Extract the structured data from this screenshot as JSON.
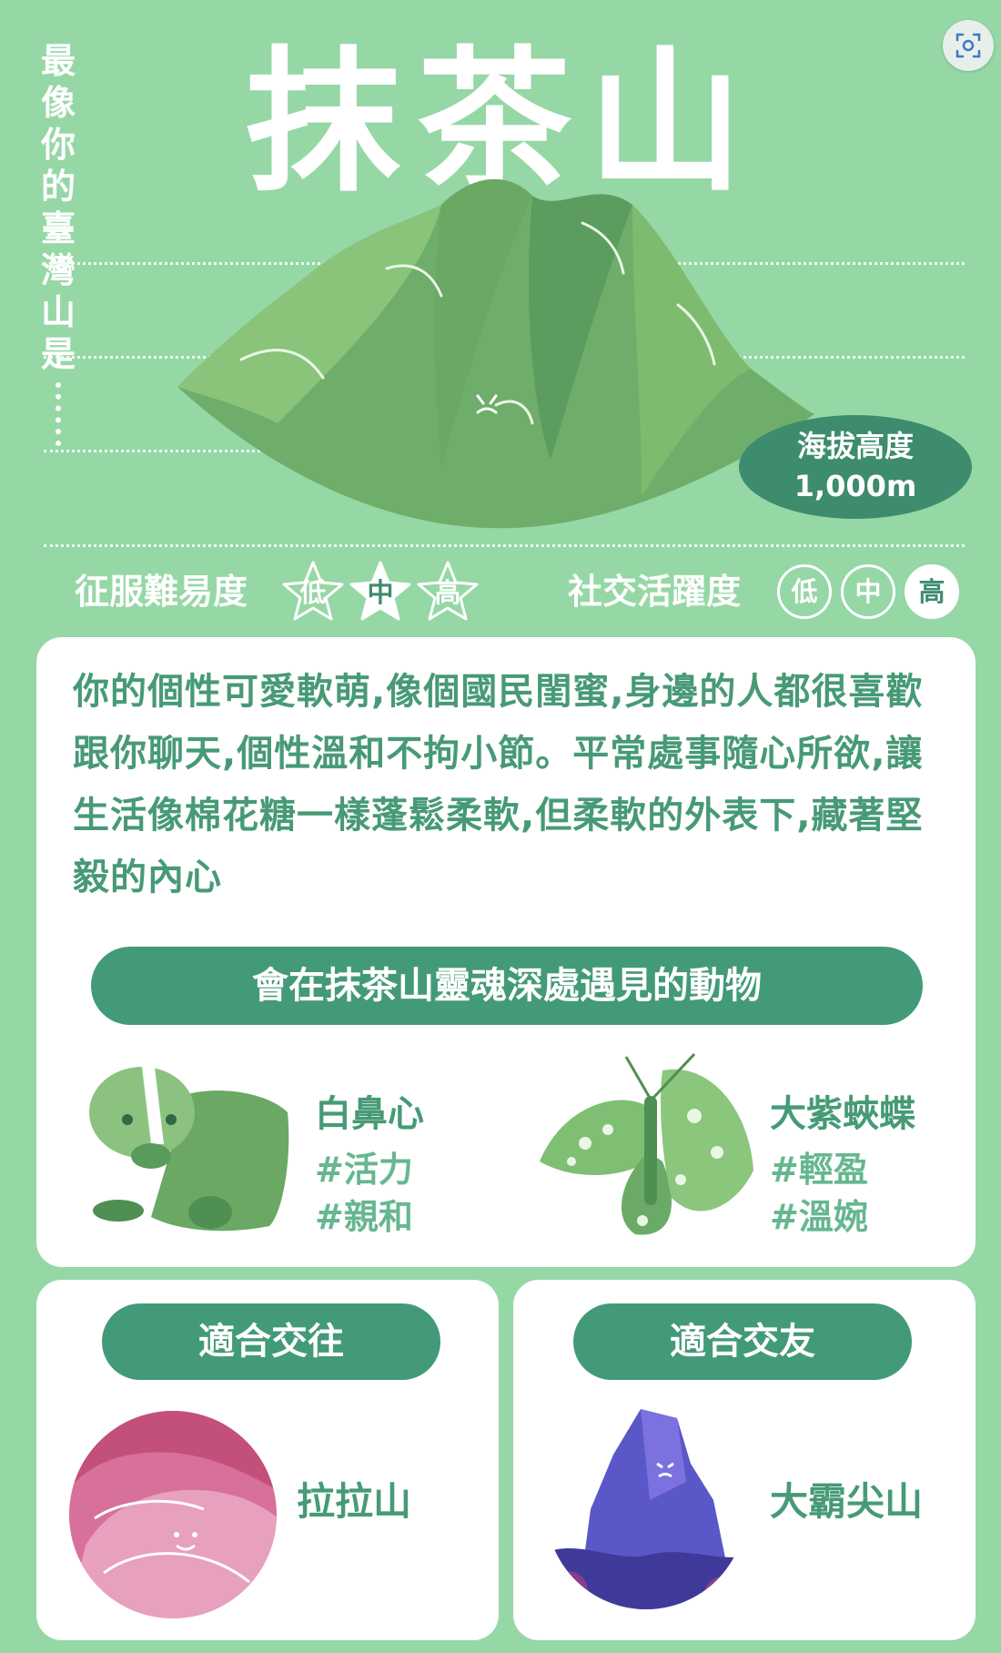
{
  "header": {
    "vertical_heading": "最像你的臺灣山是",
    "title": "抹茶山",
    "altitude_label": "海拔高度",
    "altitude_value": "1,000m"
  },
  "ratings": {
    "difficulty": {
      "label": "征服難易度",
      "levels": [
        "低",
        "中",
        "高"
      ],
      "selected": "中"
    },
    "social": {
      "label": "社交活躍度",
      "levels": [
        "低",
        "中",
        "高"
      ],
      "selected": "高"
    }
  },
  "description": "你的個性可愛軟萌,像個國民閨蜜,身邊的人都很喜歡跟你聊天,個性溫和不拘小節。平常處事隨心所欲,讓生活像棉花糖一樣蓬鬆柔軟,但柔軟的外表下,藏著堅毅的內心",
  "animals": {
    "heading": "會在抹茶山靈魂深處遇見的動物",
    "items": [
      {
        "name": "白鼻心",
        "tags": [
          "#活力",
          "#親和"
        ]
      },
      {
        "name": "大紫蛺蝶",
        "tags": [
          "#輕盈",
          "#溫婉"
        ]
      }
    ]
  },
  "matches": {
    "dating": {
      "heading": "適合交往",
      "mountain": "拉拉山"
    },
    "friends": {
      "heading": "適合交友",
      "mountain": "大霸尖山"
    }
  },
  "colors": {
    "background": "#96d7a6",
    "accent_dark": "#3d8c6d",
    "pill": "#439a78",
    "text_green": "#479a76",
    "tag_green": "#66b78f"
  },
  "icons": {
    "scan": "screenshot-scan-icon"
  }
}
